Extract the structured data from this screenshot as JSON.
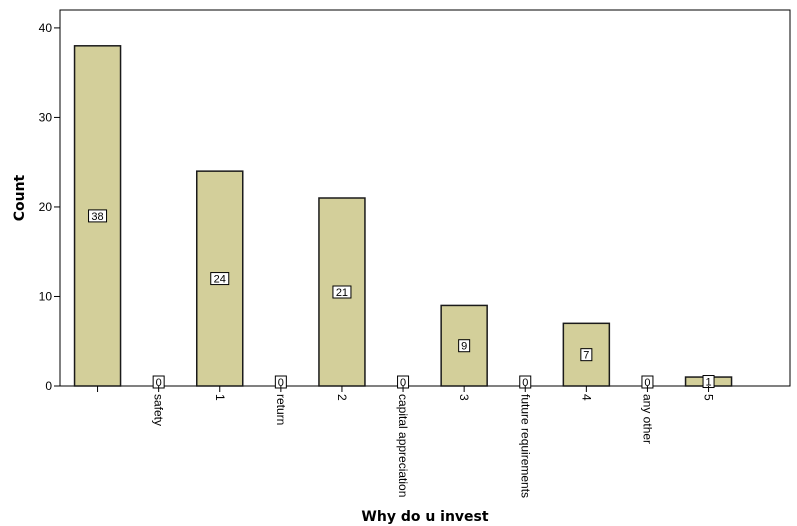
{
  "colors": {
    "bar_fill": "#d3cf9a",
    "bar_stroke": "#1a1a1a",
    "plot_border": "#000000",
    "label_box_fill": "#ffffff"
  },
  "chart_data": {
    "type": "bar",
    "title": "",
    "xlabel": "Why do u invest",
    "ylabel": "Count",
    "ylim": [
      0,
      42
    ],
    "yticks": [
      0,
      10,
      20,
      30,
      40
    ],
    "grid": false,
    "legend": "none",
    "categories": [
      "",
      "safety",
      "1",
      "return",
      "2",
      "capital appreciation",
      "3",
      "future requirements",
      "4",
      "any other",
      "5"
    ],
    "values": [
      38,
      0,
      24,
      0,
      21,
      0,
      9,
      0,
      7,
      0,
      1
    ],
    "data_labels": [
      "38",
      "0",
      "24",
      "0",
      "21",
      "0",
      "9",
      "0",
      "7",
      "0",
      "1"
    ]
  }
}
